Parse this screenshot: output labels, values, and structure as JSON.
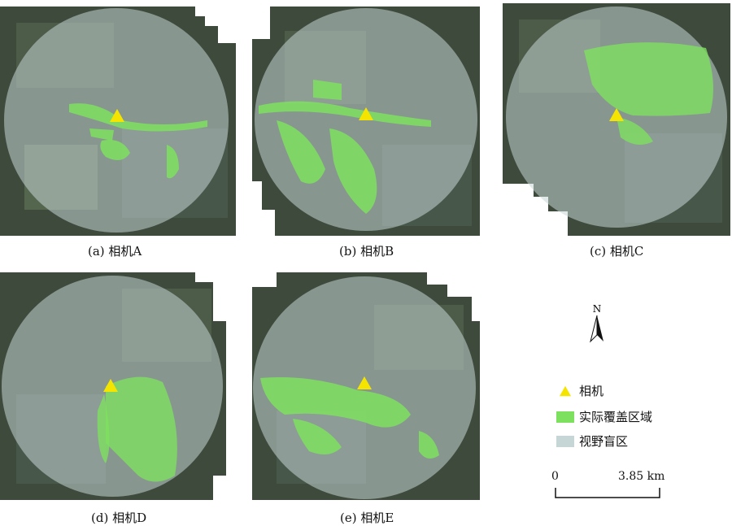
{
  "panels": [
    {
      "caption": "(a) 相机A"
    },
    {
      "caption": "(b) 相机B"
    },
    {
      "caption": "(c) 相机C"
    },
    {
      "caption": "(d) 相机D"
    },
    {
      "caption": "(e) 相机E"
    }
  ],
  "legend": {
    "items": [
      {
        "label": "相机",
        "symbol": "triangle",
        "color": "#f5e400"
      },
      {
        "label": "实际覆盖区域",
        "symbol": "rect",
        "color": "#7ee05f"
      },
      {
        "label": "视野盲区",
        "symbol": "rect",
        "color": "#c6d6d6"
      }
    ]
  },
  "north_arrow": {
    "label": "N"
  },
  "scale_bar": {
    "start": "0",
    "end": "3.85 km"
  },
  "colors": {
    "imagery_dark": "#3d4a3c",
    "imagery_mid": "#5a6a55",
    "overlay": "#c6d6d6",
    "coverage": "#7ee05f",
    "camera": "#f5e400"
  }
}
